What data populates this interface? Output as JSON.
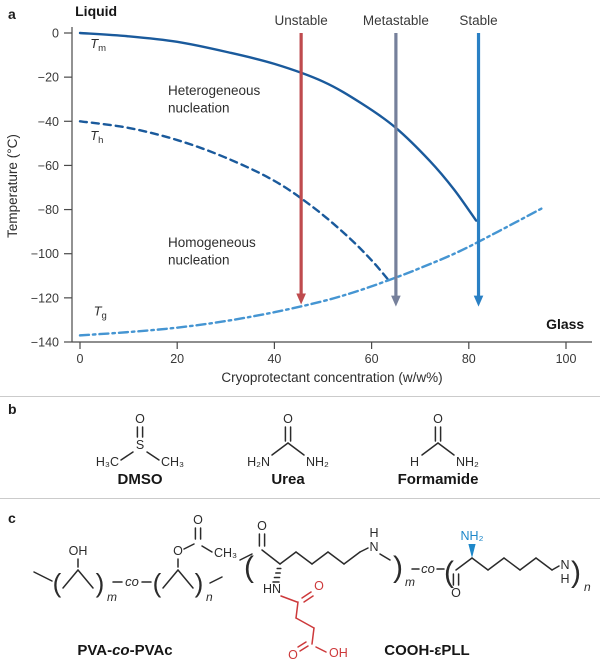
{
  "colors": {
    "dark_blue": "#1a5a9c",
    "light_blue": "#4595d2",
    "arrow_red": "#bf4b4e",
    "arrow_gray": "#76809b",
    "arrow_blue": "#2a80c4",
    "chem_red": "#cd393b",
    "chem_blue": "#1d87c9",
    "ink": "#2b2b2b",
    "axis": "#4a4a4a",
    "divider": "#cbcbcb"
  },
  "panels": {
    "a": "a",
    "b": "b",
    "c": "c"
  },
  "chart_data": {
    "type": "line",
    "title": "",
    "xlabel": "Cryoprotectant concentration (w/w%)",
    "ylabel": "Temperature (°C)",
    "xlim": [
      0,
      100
    ],
    "ylim": [
      -140,
      0
    ],
    "x_ticks": [
      0,
      20,
      40,
      60,
      80,
      100
    ],
    "y_ticks": [
      0,
      -20,
      -40,
      -60,
      -80,
      -100,
      -120,
      -140
    ],
    "grid": false,
    "legend": "none (curves labeled inline)",
    "series": [
      {
        "key": "tm",
        "name": "Tm (equilibrium melting temperature)",
        "label": {
          "main": "T",
          "sub": "m",
          "x": 2.1,
          "y": -6.8
        },
        "style": "solid",
        "color_key": "dark_blue",
        "points": [
          [
            0,
            0
          ],
          [
            10,
            -1.5
          ],
          [
            20,
            -4
          ],
          [
            30,
            -8.5
          ],
          [
            40,
            -14
          ],
          [
            50,
            -22
          ],
          [
            58,
            -32
          ],
          [
            65,
            -43
          ],
          [
            72,
            -58
          ],
          [
            77,
            -71
          ],
          [
            81.5,
            -85
          ]
        ]
      },
      {
        "key": "th",
        "name": "Th (homogeneous nucleation temperature)",
        "label": {
          "main": "T",
          "sub": "h",
          "x": 2.1,
          "y": -48.5
        },
        "style": "dashed",
        "color_key": "dark_blue",
        "points": [
          [
            0,
            -40
          ],
          [
            10,
            -43
          ],
          [
            20,
            -48.5
          ],
          [
            30,
            -56.5
          ],
          [
            40,
            -67
          ],
          [
            48,
            -79
          ],
          [
            55,
            -92
          ],
          [
            60,
            -103
          ],
          [
            63.5,
            -112
          ]
        ]
      },
      {
        "key": "tg",
        "name": "Tg (glass transition temperature)",
        "label": {
          "main": "T",
          "sub": "g",
          "x": 2.8,
          "y": -128
        },
        "style": "dashdot",
        "color_key": "light_blue",
        "points": [
          [
            0,
            -137
          ],
          [
            10,
            -135.5
          ],
          [
            20,
            -133.5
          ],
          [
            30,
            -130.5
          ],
          [
            40,
            -126.5
          ],
          [
            50,
            -121.5
          ],
          [
            57,
            -117
          ],
          [
            63.5,
            -112
          ],
          [
            70,
            -106.5
          ],
          [
            78,
            -99
          ],
          [
            86,
            -90
          ],
          [
            95,
            -79.5
          ]
        ]
      }
    ],
    "arrows": [
      {
        "label": "Unstable",
        "x": 45.5,
        "y_top": 0,
        "y_tip": -123,
        "color_key": "arrow_red"
      },
      {
        "label": "Metastable",
        "x": 65,
        "y_top": 0,
        "y_tip": -124,
        "color_key": "arrow_gray"
      },
      {
        "label": "Stable",
        "x": 82,
        "y_top": 0,
        "y_tip": -124,
        "color_key": "arrow_blue"
      }
    ],
    "region_labels": [
      {
        "key": "liquid",
        "lines": [
          "Liquid"
        ],
        "x": -1.0,
        "y": 7.7,
        "bold": true,
        "anchor": "start"
      },
      {
        "key": "heterogeneous-nucleation",
        "lines": [
          "Heterogeneous",
          "nucleation"
        ],
        "x": 18.1,
        "y": -28,
        "bold": false,
        "anchor": "start"
      },
      {
        "key": "homogeneous-nucleation",
        "lines": [
          "Homogeneous",
          "nucleation"
        ],
        "x": 18.1,
        "y": -97,
        "bold": false,
        "anchor": "start"
      },
      {
        "key": "glass",
        "lines": [
          "Glass"
        ],
        "x": 95.9,
        "y": -134,
        "bold": true,
        "anchor": "start"
      }
    ]
  },
  "panel_b": {
    "molecules": [
      {
        "label": "DMSO",
        "atoms": {
          "top": "O",
          "center": "S",
          "left": "H₃C",
          "right": "CH₃"
        }
      },
      {
        "label": "Urea",
        "atoms": {
          "top": "O",
          "left": "H₂N",
          "right": "NH₂"
        }
      },
      {
        "label": "Formamide",
        "atoms": {
          "top": "O",
          "left": "H",
          "right": "NH₂"
        }
      }
    ]
  },
  "panel_c": {
    "pva": {
      "label_parts": [
        "PVA-",
        "co",
        "-PVAc"
      ],
      "atoms": {
        "oh": "OH",
        "o_ester": "O",
        "o_carbonyl": "O",
        "ch3": "CH₃",
        "sub_m": "m",
        "sub_n": "n",
        "co": "co",
        "paren_open": "(",
        "paren_close": ")"
      }
    },
    "epll": {
      "label": "COOH-εPLL",
      "atoms": {
        "o_top": "O",
        "hn": "HN",
        "amide_h": "H",
        "amide_n": "N",
        "sub_m": "m",
        "co": "co",
        "o_down": "O",
        "nh2": "NH₂",
        "right_n": "N",
        "right_h": "H",
        "sub_n": "n",
        "red_o_carbonyl": "O",
        "red_o_acid": "O",
        "red_oh": "OH",
        "paren_open": "(",
        "paren_close": ")"
      }
    }
  }
}
